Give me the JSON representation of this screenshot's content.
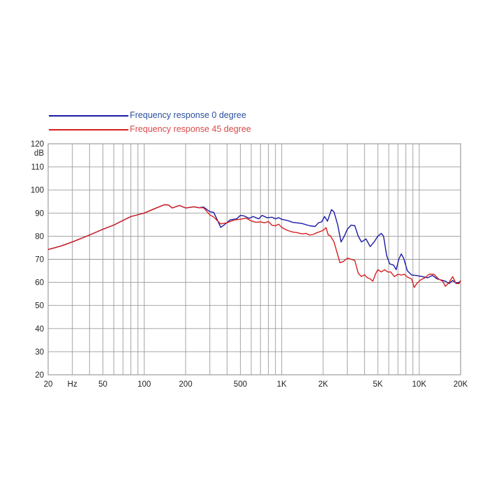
{
  "chart_data": {
    "type": "line",
    "title": "",
    "xlabel": "",
    "ylabel": "dB",
    "x_scale": "log",
    "xlim": [
      20,
      20000
    ],
    "ylim": [
      20,
      120
    ],
    "grid": true,
    "legend_position": "top-left",
    "x_tick_labels": [
      {
        "value": 20,
        "label": "20"
      },
      {
        "value": 30,
        "label": "Hz"
      },
      {
        "value": 50,
        "label": "50"
      },
      {
        "value": 100,
        "label": "100"
      },
      {
        "value": 200,
        "label": "200"
      },
      {
        "value": 500,
        "label": "500"
      },
      {
        "value": 1000,
        "label": "1K"
      },
      {
        "value": 2000,
        "label": "2K"
      },
      {
        "value": 5000,
        "label": "5K"
      },
      {
        "value": 10000,
        "label": "10K"
      },
      {
        "value": 20000,
        "label": "20K"
      }
    ],
    "y_tick_labels": [
      "20",
      "30",
      "40",
      "50",
      "60",
      "70",
      "80",
      "90",
      "100",
      "110",
      "120"
    ],
    "series": [
      {
        "name": "Frequency response 0 degree",
        "color": "#1a1aa6",
        "label_color": "#2b4f9e",
        "points": [
          [
            20,
            74.2
          ],
          [
            25,
            75.8
          ],
          [
            30,
            77.5
          ],
          [
            40,
            80.5
          ],
          [
            50,
            83
          ],
          [
            60,
            84.8
          ],
          [
            70,
            86.8
          ],
          [
            80,
            88.5
          ],
          [
            90,
            89.3
          ],
          [
            100,
            90
          ],
          [
            120,
            92
          ],
          [
            140,
            93.6
          ],
          [
            150,
            93.5
          ],
          [
            160,
            92.2
          ],
          [
            180,
            93.3
          ],
          [
            200,
            92.2
          ],
          [
            230,
            92.7
          ],
          [
            250,
            92.3
          ],
          [
            270,
            92.6
          ],
          [
            300,
            90.6
          ],
          [
            320,
            90.3
          ],
          [
            340,
            87
          ],
          [
            360,
            83.8
          ],
          [
            380,
            84.8
          ],
          [
            420,
            87
          ],
          [
            470,
            87.5
          ],
          [
            500,
            89
          ],
          [
            530,
            88.8
          ],
          [
            580,
            87.7
          ],
          [
            620,
            88.5
          ],
          [
            680,
            87.5
          ],
          [
            720,
            89
          ],
          [
            780,
            88
          ],
          [
            850,
            88.2
          ],
          [
            900,
            87.5
          ],
          [
            950,
            88
          ],
          [
            1000,
            87.3
          ],
          [
            1100,
            86.8
          ],
          [
            1200,
            86
          ],
          [
            1400,
            85.5
          ],
          [
            1600,
            84.5
          ],
          [
            1750,
            84.2
          ],
          [
            1850,
            85.8
          ],
          [
            1950,
            86.2
          ],
          [
            2050,
            88.5
          ],
          [
            2150,
            86.5
          ],
          [
            2300,
            91.5
          ],
          [
            2400,
            90.5
          ],
          [
            2550,
            85
          ],
          [
            2700,
            77.5
          ],
          [
            2850,
            80
          ],
          [
            3000,
            83
          ],
          [
            3200,
            84.8
          ],
          [
            3400,
            84.5
          ],
          [
            3600,
            80
          ],
          [
            3800,
            77.5
          ],
          [
            4100,
            78.8
          ],
          [
            4400,
            75.5
          ],
          [
            4700,
            77.5
          ],
          [
            5000,
            80
          ],
          [
            5300,
            81.2
          ],
          [
            5500,
            80
          ],
          [
            5800,
            71.5
          ],
          [
            6100,
            68
          ],
          [
            6500,
            67.5
          ],
          [
            6800,
            65.5
          ],
          [
            7100,
            70
          ],
          [
            7400,
            72.3
          ],
          [
            7700,
            70.5
          ],
          [
            8200,
            65
          ],
          [
            8800,
            63.2
          ],
          [
            9500,
            63
          ],
          [
            10500,
            62.5
          ],
          [
            11500,
            62
          ],
          [
            12500,
            63
          ],
          [
            13500,
            61.5
          ],
          [
            14500,
            61
          ],
          [
            15500,
            60.5
          ],
          [
            16500,
            59.5
          ],
          [
            17500,
            60.8
          ],
          [
            18500,
            59.8
          ],
          [
            19500,
            60
          ],
          [
            20000,
            60.7
          ]
        ]
      },
      {
        "name": "Frequency response 45 degree",
        "color": "#d81e1e",
        "label_color": "#d94a4a",
        "points": [
          [
            20,
            74.2
          ],
          [
            25,
            75.8
          ],
          [
            30,
            77.5
          ],
          [
            40,
            80.5
          ],
          [
            50,
            83
          ],
          [
            60,
            84.8
          ],
          [
            70,
            86.8
          ],
          [
            80,
            88.5
          ],
          [
            90,
            89.3
          ],
          [
            100,
            90
          ],
          [
            120,
            92
          ],
          [
            140,
            93.6
          ],
          [
            150,
            93.5
          ],
          [
            160,
            92.2
          ],
          [
            180,
            93.3
          ],
          [
            200,
            92.2
          ],
          [
            230,
            92.7
          ],
          [
            250,
            92.3
          ],
          [
            270,
            92.3
          ],
          [
            300,
            89.2
          ],
          [
            320,
            88.3
          ],
          [
            340,
            86.7
          ],
          [
            360,
            85.3
          ],
          [
            400,
            85.8
          ],
          [
            450,
            87
          ],
          [
            500,
            87.3
          ],
          [
            550,
            87.8
          ],
          [
            600,
            86.6
          ],
          [
            650,
            86
          ],
          [
            700,
            86.2
          ],
          [
            750,
            85.8
          ],
          [
            800,
            86.3
          ],
          [
            850,
            84.7
          ],
          [
            900,
            84.5
          ],
          [
            950,
            85.2
          ],
          [
            1000,
            83.8
          ],
          [
            1100,
            82.5
          ],
          [
            1200,
            81.8
          ],
          [
            1300,
            81.5
          ],
          [
            1400,
            81
          ],
          [
            1500,
            81.2
          ],
          [
            1600,
            80.5
          ],
          [
            1700,
            80.8
          ],
          [
            1800,
            81.5
          ],
          [
            1900,
            82
          ],
          [
            2000,
            82.5
          ],
          [
            2100,
            83.7
          ],
          [
            2180,
            80.5
          ],
          [
            2250,
            80.3
          ],
          [
            2400,
            77.5
          ],
          [
            2550,
            72
          ],
          [
            2650,
            68.5
          ],
          [
            2800,
            69
          ],
          [
            3000,
            70.5
          ],
          [
            3200,
            70
          ],
          [
            3400,
            69.5
          ],
          [
            3600,
            64
          ],
          [
            3800,
            62.5
          ],
          [
            4000,
            63.3
          ],
          [
            4200,
            62
          ],
          [
            4400,
            61.5
          ],
          [
            4600,
            60.5
          ],
          [
            4800,
            63.5
          ],
          [
            5000,
            65.5
          ],
          [
            5300,
            64.5
          ],
          [
            5600,
            65.5
          ],
          [
            5900,
            64.5
          ],
          [
            6200,
            64.5
          ],
          [
            6600,
            62.5
          ],
          [
            7000,
            63.5
          ],
          [
            7400,
            63.2
          ],
          [
            7800,
            63.5
          ],
          [
            8200,
            62.3
          ],
          [
            8800,
            61.5
          ],
          [
            9200,
            57.8
          ],
          [
            9600,
            59.5
          ],
          [
            10200,
            61
          ],
          [
            11000,
            62
          ],
          [
            11800,
            63.5
          ],
          [
            12800,
            63.5
          ],
          [
            13800,
            61.5
          ],
          [
            14800,
            60.5
          ],
          [
            15500,
            58.3
          ],
          [
            16500,
            60
          ],
          [
            17500,
            62.5
          ],
          [
            18500,
            59.5
          ],
          [
            19500,
            59.5
          ],
          [
            20000,
            60.7
          ]
        ]
      }
    ]
  }
}
